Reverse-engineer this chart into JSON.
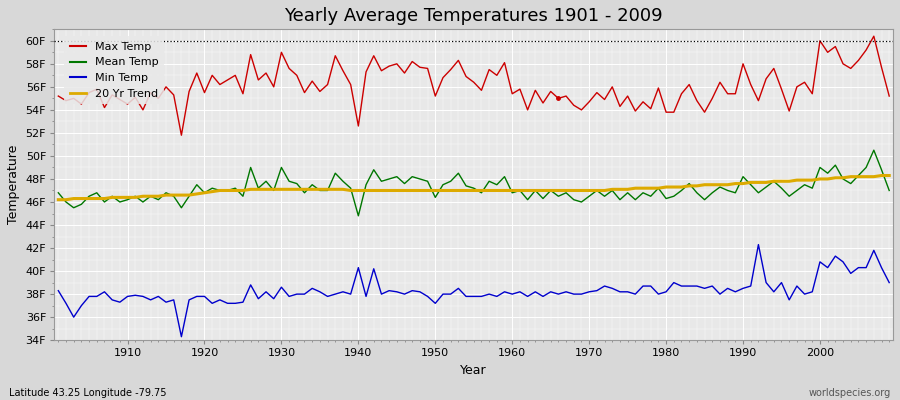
{
  "title": "Yearly Average Temperatures 1901 - 2009",
  "xlabel": "Year",
  "ylabel": "Temperature",
  "footer_left": "Latitude 43.25 Longitude -79.75",
  "footer_right": "worldspecies.org",
  "years": [
    1901,
    1902,
    1903,
    1904,
    1905,
    1906,
    1907,
    1908,
    1909,
    1910,
    1911,
    1912,
    1913,
    1914,
    1915,
    1916,
    1917,
    1918,
    1919,
    1920,
    1921,
    1922,
    1923,
    1924,
    1925,
    1926,
    1927,
    1928,
    1929,
    1930,
    1931,
    1932,
    1933,
    1934,
    1935,
    1936,
    1937,
    1938,
    1939,
    1940,
    1941,
    1942,
    1943,
    1944,
    1945,
    1946,
    1947,
    1948,
    1949,
    1950,
    1951,
    1952,
    1953,
    1954,
    1955,
    1956,
    1957,
    1958,
    1959,
    1960,
    1961,
    1962,
    1963,
    1964,
    1965,
    1966,
    1967,
    1968,
    1969,
    1970,
    1971,
    1972,
    1973,
    1974,
    1975,
    1976,
    1977,
    1978,
    1979,
    1980,
    1981,
    1982,
    1983,
    1984,
    1985,
    1986,
    1987,
    1988,
    1989,
    1990,
    1991,
    1992,
    1993,
    1994,
    1995,
    1996,
    1997,
    1998,
    1999,
    2000,
    2001,
    2002,
    2003,
    2004,
    2005,
    2006,
    2007,
    2008,
    2009
  ],
  "max_temp": [
    55.2,
    54.8,
    55.0,
    54.5,
    55.5,
    55.8,
    54.2,
    55.3,
    54.9,
    54.5,
    55.1,
    54.0,
    55.5,
    55.0,
    56.0,
    55.3,
    51.8,
    55.6,
    57.2,
    55.5,
    57.0,
    56.2,
    56.6,
    57.0,
    55.4,
    58.8,
    56.6,
    57.2,
    56.0,
    59.0,
    57.6,
    57.0,
    55.5,
    56.5,
    55.6,
    56.2,
    58.7,
    57.4,
    56.2,
    52.6,
    57.3,
    58.7,
    57.4,
    57.8,
    58.0,
    57.2,
    58.2,
    57.7,
    57.6,
    55.2,
    56.8,
    57.5,
    58.3,
    56.9,
    56.4,
    55.7,
    57.5,
    57.0,
    58.1,
    55.4,
    55.8,
    54.0,
    55.7,
    54.6,
    55.6,
    55.0,
    55.2,
    54.4,
    54.0,
    54.7,
    55.5,
    54.9,
    56.0,
    54.3,
    55.2,
    53.9,
    54.7,
    54.1,
    55.9,
    53.8,
    53.8,
    55.4,
    56.2,
    54.8,
    53.8,
    55.0,
    56.4,
    55.4,
    55.4,
    58.0,
    56.2,
    54.8,
    56.7,
    57.6,
    55.8,
    53.9,
    56.0,
    56.4,
    55.4,
    60.0,
    59.0,
    59.5,
    58.0,
    57.6,
    58.3,
    59.2,
    60.4,
    57.7,
    55.2
  ],
  "mean_temp": [
    46.8,
    46.0,
    45.5,
    45.8,
    46.5,
    46.8,
    46.0,
    46.5,
    46.0,
    46.2,
    46.5,
    46.0,
    46.5,
    46.2,
    46.8,
    46.5,
    45.5,
    46.5,
    47.5,
    46.8,
    47.2,
    47.0,
    47.0,
    47.2,
    46.5,
    49.0,
    47.2,
    47.8,
    47.0,
    49.0,
    47.8,
    47.6,
    46.8,
    47.5,
    47.0,
    47.0,
    48.5,
    47.8,
    47.2,
    44.8,
    47.5,
    48.8,
    47.8,
    48.0,
    48.2,
    47.6,
    48.2,
    48.0,
    47.8,
    46.4,
    47.5,
    47.8,
    48.5,
    47.4,
    47.2,
    46.8,
    47.8,
    47.5,
    48.2,
    46.8,
    47.0,
    46.2,
    47.0,
    46.3,
    47.0,
    46.5,
    46.8,
    46.2,
    46.0,
    46.5,
    47.0,
    46.5,
    47.0,
    46.2,
    46.8,
    46.2,
    46.8,
    46.5,
    47.2,
    46.3,
    46.5,
    47.0,
    47.6,
    46.8,
    46.2,
    46.8,
    47.3,
    47.0,
    46.8,
    48.2,
    47.5,
    46.8,
    47.3,
    47.8,
    47.2,
    46.5,
    47.0,
    47.5,
    47.2,
    49.0,
    48.5,
    49.2,
    48.0,
    47.6,
    48.3,
    49.0,
    50.5,
    48.8,
    47.0
  ],
  "min_temp": [
    38.3,
    37.2,
    36.0,
    37.0,
    37.8,
    37.8,
    38.2,
    37.5,
    37.3,
    37.8,
    37.9,
    37.8,
    37.5,
    37.8,
    37.3,
    37.5,
    34.3,
    37.5,
    37.8,
    37.8,
    37.2,
    37.5,
    37.2,
    37.2,
    37.3,
    38.8,
    37.6,
    38.2,
    37.6,
    38.6,
    37.8,
    38.0,
    38.0,
    38.5,
    38.2,
    37.8,
    38.0,
    38.2,
    38.0,
    40.3,
    37.8,
    40.2,
    38.0,
    38.3,
    38.2,
    38.0,
    38.3,
    38.2,
    37.8,
    37.2,
    38.0,
    38.0,
    38.5,
    37.8,
    37.8,
    37.8,
    38.0,
    37.8,
    38.2,
    38.0,
    38.2,
    37.8,
    38.2,
    37.8,
    38.2,
    38.0,
    38.2,
    38.0,
    38.0,
    38.2,
    38.3,
    38.7,
    38.5,
    38.2,
    38.2,
    38.0,
    38.7,
    38.7,
    38.0,
    38.2,
    39.0,
    38.7,
    38.7,
    38.7,
    38.5,
    38.7,
    38.0,
    38.5,
    38.2,
    38.5,
    38.7,
    42.3,
    39.0,
    38.2,
    39.0,
    37.5,
    38.7,
    38.0,
    38.2,
    40.8,
    40.3,
    41.3,
    40.8,
    39.8,
    40.3,
    40.3,
    41.8,
    40.3,
    39.0
  ],
  "trend": [
    46.2,
    46.2,
    46.3,
    46.3,
    46.3,
    46.3,
    46.3,
    46.4,
    46.4,
    46.4,
    46.4,
    46.5,
    46.5,
    46.5,
    46.6,
    46.6,
    46.6,
    46.6,
    46.7,
    46.8,
    46.9,
    47.0,
    47.0,
    47.0,
    47.0,
    47.1,
    47.1,
    47.1,
    47.1,
    47.1,
    47.1,
    47.1,
    47.1,
    47.1,
    47.1,
    47.1,
    47.1,
    47.1,
    47.0,
    47.0,
    47.0,
    47.0,
    47.0,
    47.0,
    47.0,
    47.0,
    47.0,
    47.0,
    47.0,
    47.0,
    47.0,
    47.0,
    47.0,
    47.0,
    47.0,
    47.0,
    47.0,
    47.0,
    47.0,
    47.0,
    47.0,
    47.0,
    47.0,
    47.0,
    47.0,
    47.0,
    47.0,
    47.0,
    47.0,
    47.0,
    47.0,
    47.0,
    47.1,
    47.1,
    47.1,
    47.2,
    47.2,
    47.2,
    47.2,
    47.3,
    47.3,
    47.3,
    47.4,
    47.4,
    47.5,
    47.5,
    47.5,
    47.5,
    47.6,
    47.6,
    47.7,
    47.7,
    47.7,
    47.8,
    47.8,
    47.8,
    47.9,
    47.9,
    47.9,
    48.0,
    48.0,
    48.1,
    48.1,
    48.2,
    48.2,
    48.2,
    48.2,
    48.3,
    48.3
  ],
  "max_color": "#cc0000",
  "mean_color": "#007700",
  "min_color": "#0000cc",
  "trend_color": "#ddaa00",
  "bg_color": "#d8d8d8",
  "plot_bg_color": "#e8e8e8",
  "grid_color": "#ffffff",
  "ylim_min": 34,
  "ylim_max": 61,
  "yticks": [
    34,
    36,
    38,
    40,
    42,
    44,
    46,
    48,
    50,
    52,
    54,
    56,
    58,
    60
  ],
  "xticks": [
    1910,
    1920,
    1930,
    1940,
    1950,
    1960,
    1970,
    1980,
    1990,
    2000
  ],
  "title_fontsize": 13,
  "axis_fontsize": 9,
  "tick_fontsize": 8,
  "legend_fontsize": 8,
  "linewidth": 1.0,
  "trend_linewidth": 2.2,
  "dotted_line_y": 60,
  "dot_year": 1966,
  "dot_value": 55.0,
  "figwidth": 9.0,
  "figheight": 4.0,
  "dpi": 100
}
